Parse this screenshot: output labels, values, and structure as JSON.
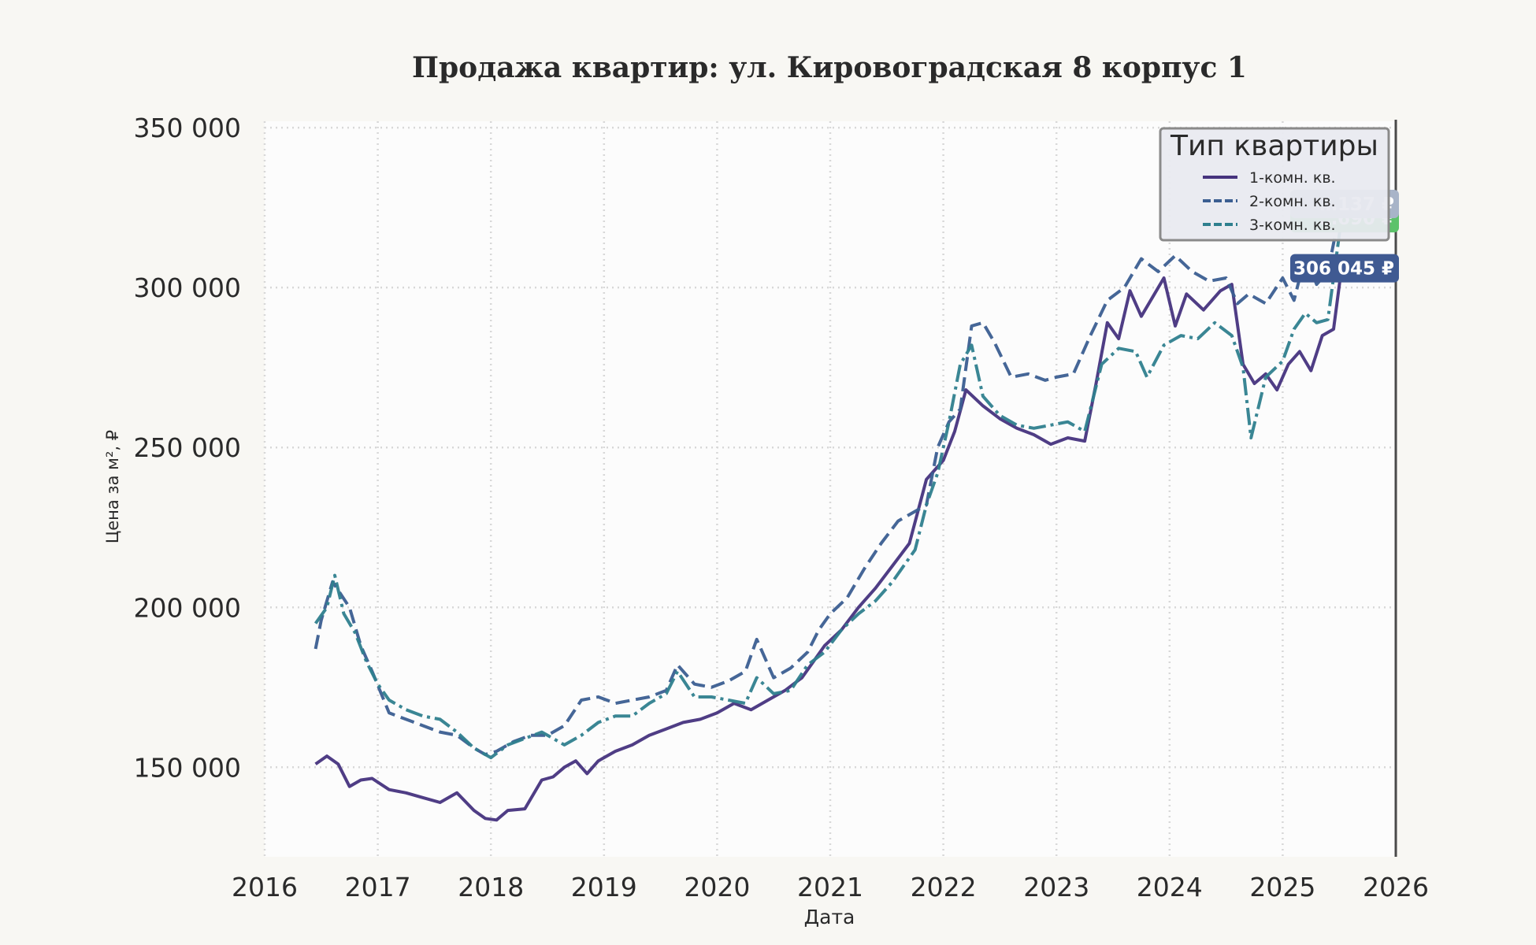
{
  "chart_data": {
    "type": "line",
    "title": "Продажа квартир: ул. Кировоградская 8 корпус 1",
    "xlabel": "Дата",
    "ylabel": "Цена за м², ₽",
    "xlim": [
      2016.0,
      2026.0
    ],
    "ylim": [
      122000,
      352000
    ],
    "x_ticks": [
      "2016",
      "2017",
      "2018",
      "2019",
      "2020",
      "2021",
      "2022",
      "2023",
      "2024",
      "2025",
      "2026"
    ],
    "y_ticks": [
      {
        "value": 150000,
        "label": "150 000"
      },
      {
        "value": 200000,
        "label": "200 000"
      },
      {
        "value": 250000,
        "label": "250 000"
      },
      {
        "value": 300000,
        "label": "300 000"
      },
      {
        "value": 350000,
        "label": "350 000"
      }
    ],
    "grid": true,
    "legend": {
      "title": "Тип квартиры",
      "placement": "top-right"
    },
    "marker_line_x": 2026.0,
    "end_labels": [
      {
        "text": "306 045 ₽",
        "y": 306045,
        "color": "#3f5a92"
      },
      {
        "text": "…690 ₽",
        "y": 321690,
        "color": "#5cc26a"
      },
      {
        "text": "…137 ₽",
        "y": 326137,
        "color": "#a8b4c8"
      }
    ],
    "series": [
      {
        "name": "1-комн. кв.",
        "color": "#46337e",
        "style": "solid",
        "x": [
          2016.45,
          2016.55,
          2016.65,
          2016.75,
          2016.85,
          2016.95,
          2017.1,
          2017.25,
          2017.4,
          2017.55,
          2017.7,
          2017.85,
          2017.95,
          2018.05,
          2018.15,
          2018.3,
          2018.45,
          2018.55,
          2018.65,
          2018.75,
          2018.85,
          2018.95,
          2019.1,
          2019.25,
          2019.4,
          2019.55,
          2019.7,
          2019.85,
          2020.0,
          2020.15,
          2020.3,
          2020.45,
          2020.6,
          2020.75,
          2020.85,
          2020.95,
          2021.1,
          2021.25,
          2021.4,
          2021.55,
          2021.7,
          2021.85,
          2022.0,
          2022.1,
          2022.2,
          2022.35,
          2022.5,
          2022.65,
          2022.8,
          2022.95,
          2023.1,
          2023.25,
          2023.35,
          2023.45,
          2023.55,
          2023.65,
          2023.75,
          2023.85,
          2023.95,
          2024.05,
          2024.15,
          2024.3,
          2024.45,
          2024.55,
          2024.65,
          2024.75,
          2024.85,
          2024.95,
          2025.05,
          2025.15,
          2025.25,
          2025.35,
          2025.45,
          2025.52
        ],
        "y": [
          151000,
          153500,
          151000,
          144000,
          146000,
          146500,
          143000,
          142000,
          140500,
          139000,
          142000,
          136500,
          134000,
          133500,
          136500,
          137000,
          146000,
          147000,
          150000,
          152000,
          148000,
          152000,
          155000,
          157000,
          160000,
          162000,
          164000,
          165000,
          167000,
          170000,
          168000,
          171000,
          174000,
          178000,
          183000,
          188000,
          193000,
          200000,
          206000,
          213000,
          220000,
          240000,
          246000,
          255000,
          268000,
          263000,
          259000,
          256000,
          254000,
          251000,
          253000,
          252000,
          270000,
          289000,
          284000,
          299000,
          291000,
          297000,
          303000,
          288000,
          298000,
          293000,
          299000,
          301000,
          276000,
          270000,
          273000,
          268000,
          276000,
          280000,
          274000,
          285000,
          287000,
          306045
        ]
      },
      {
        "name": "2-комн. кв.",
        "color": "#3b5e91",
        "style": "dashdot",
        "x": [
          2016.45,
          2016.5,
          2016.6,
          2016.75,
          2016.85,
          2016.95,
          2017.1,
          2017.25,
          2017.4,
          2017.55,
          2017.7,
          2017.85,
          2017.95,
          2018.05,
          2018.2,
          2018.35,
          2018.5,
          2018.65,
          2018.8,
          2018.95,
          2019.1,
          2019.25,
          2019.4,
          2019.55,
          2019.65,
          2019.8,
          2019.95,
          2020.1,
          2020.25,
          2020.35,
          2020.5,
          2020.65,
          2020.8,
          2020.9,
          2021.0,
          2021.15,
          2021.3,
          2021.45,
          2021.6,
          2021.75,
          2021.85,
          2021.95,
          2022.05,
          2022.15,
          2022.25,
          2022.35,
          2022.45,
          2022.6,
          2022.75,
          2022.9,
          2023.0,
          2023.15,
          2023.3,
          2023.45,
          2023.6,
          2023.75,
          2023.9,
          2024.05,
          2024.2,
          2024.35,
          2024.5,
          2024.6,
          2024.7,
          2024.85,
          2025.0,
          2025.1,
          2025.2,
          2025.3,
          2025.4,
          2025.52
        ],
        "y": [
          187000,
          196000,
          208000,
          200000,
          188000,
          180000,
          167000,
          165000,
          163000,
          161000,
          160000,
          156000,
          154000,
          155000,
          158000,
          160000,
          160000,
          163000,
          171000,
          172000,
          170000,
          171000,
          172000,
          174000,
          182000,
          176000,
          175000,
          177000,
          180000,
          190000,
          178000,
          181000,
          186000,
          193000,
          198000,
          203000,
          212000,
          220000,
          227000,
          230000,
          232000,
          250000,
          258000,
          262000,
          288000,
          289000,
          283000,
          272000,
          273000,
          271000,
          272000,
          273000,
          285000,
          296000,
          300000,
          309000,
          305000,
          310000,
          305000,
          302000,
          303000,
          295000,
          298000,
          295000,
          303000,
          296000,
          310000,
          301000,
          305000,
          326137
        ]
      },
      {
        "name": "3-комн. кв.",
        "color": "#2f7f8e",
        "style": "dashdot2",
        "x": [
          2016.45,
          2016.55,
          2016.62,
          2016.7,
          2016.8,
          2016.9,
          2017.0,
          2017.1,
          2017.25,
          2017.4,
          2017.55,
          2017.7,
          2017.85,
          2018.0,
          2018.15,
          2018.3,
          2018.45,
          2018.55,
          2018.65,
          2018.8,
          2018.95,
          2019.1,
          2019.25,
          2019.4,
          2019.55,
          2019.65,
          2019.8,
          2019.95,
          2020.1,
          2020.25,
          2020.35,
          2020.5,
          2020.65,
          2020.8,
          2020.95,
          2021.1,
          2021.25,
          2021.4,
          2021.55,
          2021.65,
          2021.75,
          2021.85,
          2021.95,
          2022.05,
          2022.15,
          2022.25,
          2022.35,
          2022.5,
          2022.65,
          2022.8,
          2022.95,
          2023.1,
          2023.25,
          2023.4,
          2023.55,
          2023.7,
          2023.8,
          2023.95,
          2024.1,
          2024.25,
          2024.4,
          2024.55,
          2024.65,
          2024.72,
          2024.85,
          2025.0,
          2025.1,
          2025.2,
          2025.3,
          2025.4,
          2025.52
        ],
        "y": [
          195000,
          200000,
          210000,
          198000,
          192000,
          183000,
          176000,
          171000,
          168000,
          166000,
          165000,
          161000,
          156000,
          153000,
          157000,
          159000,
          161000,
          159000,
          157000,
          160000,
          164000,
          166000,
          166000,
          170000,
          173000,
          180000,
          172000,
          172000,
          171000,
          170000,
          178000,
          173000,
          174000,
          182000,
          186000,
          193000,
          198000,
          202000,
          208000,
          213000,
          218000,
          232000,
          242000,
          258000,
          276000,
          282000,
          266000,
          260000,
          257000,
          256000,
          257000,
          258000,
          255000,
          276000,
          281000,
          280000,
          272000,
          282000,
          285000,
          284000,
          289000,
          285000,
          275000,
          253000,
          272000,
          277000,
          287000,
          292000,
          289000,
          290000,
          321690
        ]
      }
    ]
  }
}
